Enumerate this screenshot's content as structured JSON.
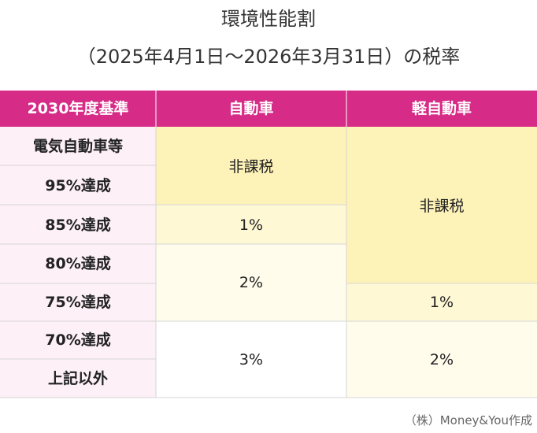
{
  "header": {
    "title_line1": "環境性能割",
    "title_line2": "（2025年4月1日〜2026年3月31日）の税率"
  },
  "table": {
    "columns": [
      "2030年度基準",
      "自動車",
      "軽自動車"
    ],
    "row_labels": [
      "電気自動車等",
      "95%達成",
      "85%達成",
      "80%達成",
      "75%達成",
      "70%達成",
      "上記以外"
    ],
    "car_cells": [
      "非課税",
      "1%",
      "2%",
      "3%"
    ],
    "kei_cells": [
      "非課税",
      "1%",
      "2%"
    ]
  },
  "footer": {
    "credit": "（株）Money&You作成"
  }
}
